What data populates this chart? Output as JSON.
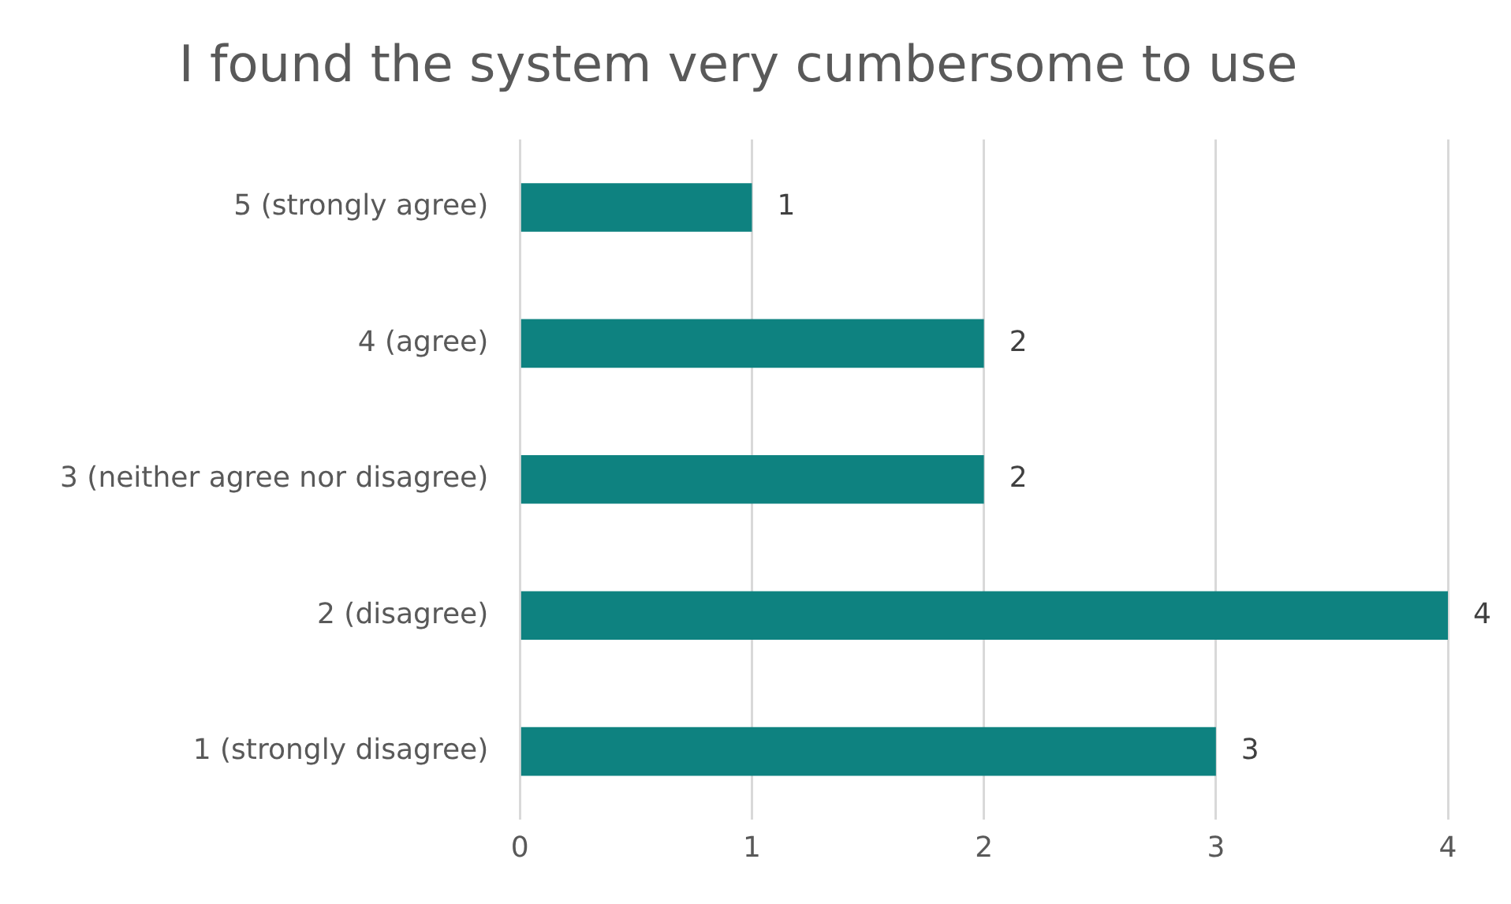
{
  "chart_data": {
    "type": "bar",
    "orientation": "horizontal",
    "title": "I found the system very cumbersome to use",
    "categories": [
      "5 (strongly agree)",
      "4 (agree)",
      "3 (neither agree nor disagree)",
      "2 (disagree)",
      "1 (strongly disagree)"
    ],
    "values": [
      1,
      2,
      2,
      4,
      3
    ],
    "color": "#0e8280",
    "xlim": [
      0,
      4
    ],
    "xticks": [
      0,
      1,
      2,
      3,
      4
    ],
    "grid": "x",
    "data_labels": true
  }
}
